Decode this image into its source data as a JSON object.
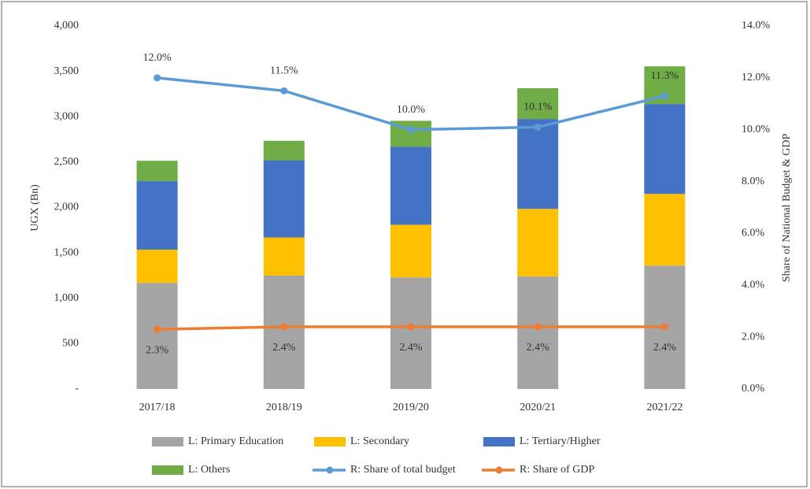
{
  "chart_data": {
    "type": "bar",
    "stacked": true,
    "categories": [
      "2017/18",
      "2018/19",
      "2019/20",
      "2020/21",
      "2021/22"
    ],
    "y_label": "UGX (Bn)",
    "y2_label": "Share of National Budget & GDP",
    "ylim": [
      0,
      4000
    ],
    "yticks": [
      {
        "value": 0,
        "label": "-"
      },
      500,
      {
        "value": 1000,
        "label": "1,000"
      },
      {
        "value": 1500,
        "label": "1,500"
      },
      {
        "value": 2000,
        "label": "2,000"
      },
      {
        "value": 2500,
        "label": "2,500"
      },
      {
        "value": 3000,
        "label": "3,000"
      },
      {
        "value": 3500,
        "label": "3,500"
      },
      {
        "value": 4000,
        "label": "4,000"
      }
    ],
    "y2lim": [
      0,
      14
    ],
    "y2ticks": [
      {
        "value": 0,
        "label": "0.0%"
      },
      {
        "value": 2,
        "label": "2.0%"
      },
      {
        "value": 4,
        "label": "4.0%"
      },
      {
        "value": 6,
        "label": "6.0%"
      },
      {
        "value": 8,
        "label": "8.0%"
      },
      {
        "value": 10,
        "label": "10.0%"
      },
      {
        "value": 12,
        "label": "12.0%"
      },
      {
        "value": 14,
        "label": "14.0%"
      }
    ],
    "series": [
      {
        "name": "L: Primary Education",
        "type": "bar",
        "color": "#a5a5a5",
        "values": [
          1170,
          1250,
          1230,
          1240,
          1360
        ]
      },
      {
        "name": "L: Secondary",
        "type": "bar",
        "color": "#ffc000",
        "values": [
          365,
          420,
          580,
          745,
          790
        ]
      },
      {
        "name": "L: Tertiary/Higher",
        "type": "bar",
        "color": "#4472c4",
        "values": [
          755,
          850,
          860,
          990,
          990
        ]
      },
      {
        "name": "L: Others",
        "type": "bar",
        "color": "#70ad47",
        "values": [
          225,
          215,
          285,
          340,
          415
        ]
      },
      {
        "name": "R: Share of total budget",
        "type": "line",
        "axis": "y2",
        "color": "#5b9bd5",
        "values": [
          12.0,
          11.5,
          10.0,
          10.1,
          11.3
        ],
        "value_labels": [
          "12.0%",
          "11.5%",
          "10.0%",
          "10.1%",
          "11.3%"
        ]
      },
      {
        "name": "R: Share of GDP",
        "type": "line",
        "axis": "y2",
        "color": "#ed7d31",
        "values": [
          2.3,
          2.4,
          2.4,
          2.4,
          2.4
        ],
        "value_labels": [
          "2.3%",
          "2.4%",
          "2.4%",
          "2.4%",
          "2.4%"
        ]
      }
    ]
  }
}
